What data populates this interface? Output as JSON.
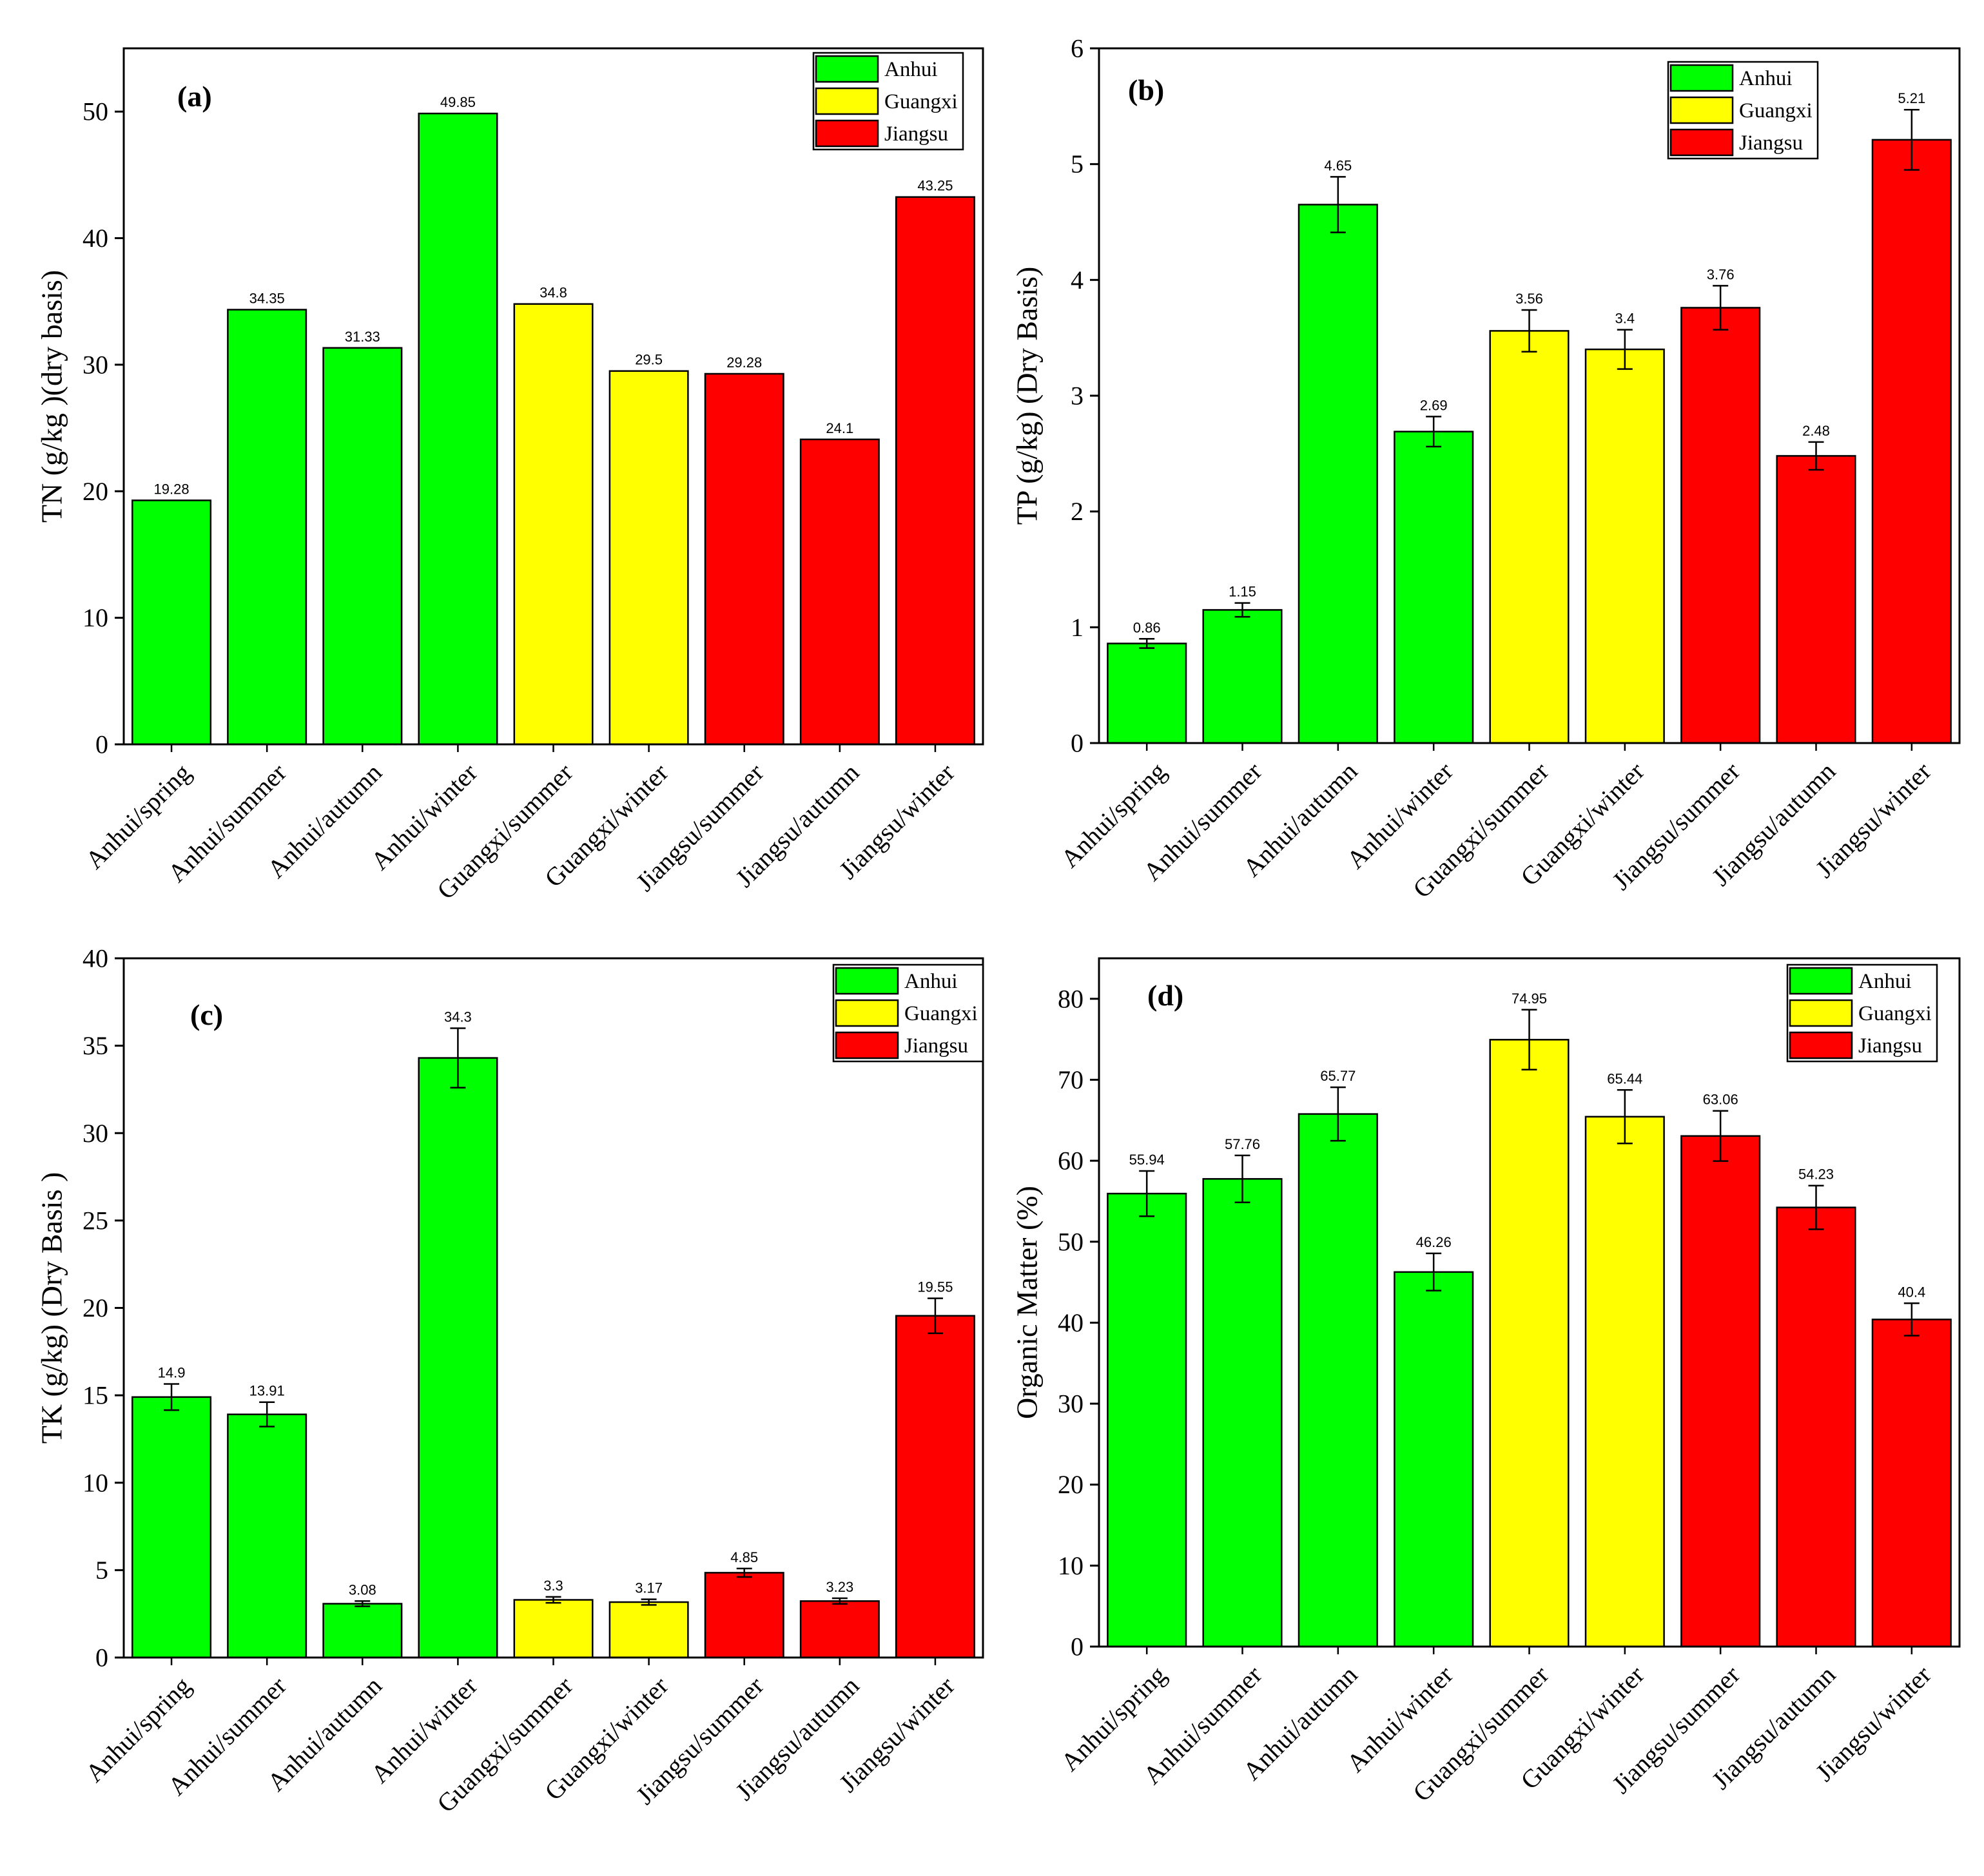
{
  "legend": [
    {
      "name": "Anhui",
      "color": "#00ff00"
    },
    {
      "name": "Guangxi",
      "color": "#ffff00"
    },
    {
      "name": "Jiangsu",
      "color": "#ff0000"
    }
  ],
  "chart_data": [
    {
      "type": "bar",
      "panel": "(a)",
      "ylabel": "TN (g/kg )(dry basis)",
      "ylim": [
        0,
        55
      ],
      "yticks": [
        0,
        10,
        20,
        30,
        40,
        50
      ],
      "legend_position": "top-right",
      "categories": [
        "Anhui/spring",
        "Anhui/summer",
        "Anhui/autumn",
        "Anhui/winter",
        "Guangxi/summer",
        "Guangxi/winter",
        "Jiangsu/summer",
        "Jiangsu/autumn",
        "Jiangsu/winter"
      ],
      "groups": [
        "Anhui",
        "Anhui",
        "Anhui",
        "Anhui",
        "Guangxi",
        "Guangxi",
        "Jiangsu",
        "Jiangsu",
        "Jiangsu"
      ],
      "values": [
        19.28,
        34.35,
        31.33,
        49.85,
        34.8,
        29.5,
        29.28,
        24.1,
        43.25
      ],
      "value_labels": [
        "19.28",
        "34.35",
        "31.33",
        "49.85",
        "34.8",
        "29.5",
        "29.28",
        "24.1",
        "43.25"
      ],
      "errors": [
        0,
        0,
        0,
        0,
        0,
        0,
        0,
        0,
        0
      ]
    },
    {
      "type": "bar",
      "panel": "(b)",
      "ylabel": "TP (g/kg) (Dry Basis)",
      "ylim": [
        0,
        6
      ],
      "yticks": [
        0,
        1,
        2,
        3,
        4,
        5,
        6
      ],
      "legend_position": "top-right",
      "categories": [
        "Anhui/spring",
        "Anhui/summer",
        "Anhui/autumn",
        "Anhui/winter",
        "Guangxi/summer",
        "Guangxi/winter",
        "Jiangsu/summer",
        "Jiangsu/autumn",
        "Jiangsu/winter"
      ],
      "groups": [
        "Anhui",
        "Anhui",
        "Anhui",
        "Anhui",
        "Guangxi",
        "Guangxi",
        "Jiangsu",
        "Jiangsu",
        "Jiangsu"
      ],
      "values": [
        0.86,
        1.15,
        4.65,
        2.69,
        3.56,
        3.4,
        3.76,
        2.48,
        5.21
      ],
      "value_labels": [
        "0.86",
        "1.15",
        "4.65",
        "2.69",
        "3.56",
        "3.4",
        "3.76",
        "2.48",
        "5.21"
      ],
      "errors": [
        0.04,
        0.06,
        0.24,
        0.13,
        0.18,
        0.17,
        0.19,
        0.12,
        0.26
      ]
    },
    {
      "type": "bar",
      "panel": "(c)",
      "ylabel": "TK (g/kg) (Dry Basis )",
      "ylim": [
        0,
        40
      ],
      "yticks": [
        0,
        5,
        10,
        15,
        20,
        25,
        30,
        35,
        40
      ],
      "legend_position": "top-right",
      "categories": [
        "Anhui/spring",
        "Anhui/summer",
        "Anhui/autumn",
        "Anhui/winter",
        "Guangxi/summer",
        "Guangxi/winter",
        "Jiangsu/summer",
        "Jiangsu/autumn",
        "Jiangsu/winter"
      ],
      "groups": [
        "Anhui",
        "Anhui",
        "Anhui",
        "Anhui",
        "Guangxi",
        "Guangxi",
        "Jiangsu",
        "Jiangsu",
        "Jiangsu"
      ],
      "values": [
        14.9,
        13.91,
        3.08,
        34.3,
        3.3,
        3.17,
        4.85,
        3.23,
        19.55
      ],
      "value_labels": [
        "14.9",
        "13.91",
        "3.08",
        "34.3",
        "3.3",
        "3.17",
        "4.85",
        "3.23",
        "19.55"
      ],
      "errors": [
        0.75,
        0.7,
        0.15,
        1.7,
        0.17,
        0.16,
        0.24,
        0.16,
        1.0
      ]
    },
    {
      "type": "bar",
      "panel": "(d)",
      "ylabel": "Organic Matter (%)",
      "ylim": [
        0,
        85
      ],
      "yticks": [
        0,
        10,
        20,
        30,
        40,
        50,
        60,
        70,
        80
      ],
      "legend_position": "top-right",
      "categories": [
        "Anhui/spring",
        "Anhui/summer",
        "Anhui/autumn",
        "Anhui/winter",
        "Guangxi/summer",
        "Guangxi/winter",
        "Jiangsu/summer",
        "Jiangsu/autumn",
        "Jiangsu/winter"
      ],
      "groups": [
        "Anhui",
        "Anhui",
        "Anhui",
        "Anhui",
        "Guangxi",
        "Guangxi",
        "Jiangsu",
        "Jiangsu",
        "Jiangsu"
      ],
      "values": [
        55.94,
        57.76,
        65.77,
        46.26,
        74.95,
        65.44,
        63.06,
        54.23,
        40.4
      ],
      "value_labels": [
        "55.94",
        "57.76",
        "65.77",
        "46.26",
        "74.95",
        "65.44",
        "63.06",
        "54.23",
        "40.4"
      ],
      "errors": [
        2.8,
        2.9,
        3.3,
        2.3,
        3.7,
        3.3,
        3.1,
        2.7,
        2.0
      ]
    }
  ]
}
